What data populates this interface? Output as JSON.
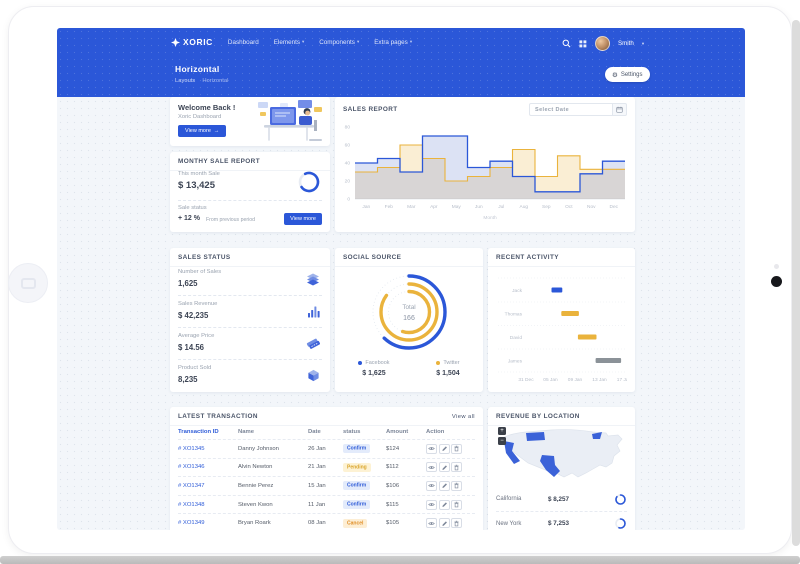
{
  "navbar": {
    "logo": "XORIC",
    "items": [
      {
        "label": "Dashboard",
        "caret": false
      },
      {
        "label": "Elements",
        "caret": true
      },
      {
        "label": "Components",
        "caret": true
      },
      {
        "label": "Extra pages",
        "caret": true
      }
    ],
    "user": "Smith"
  },
  "page_header": {
    "title": "Horizontal",
    "breadcrumb": [
      "Layouts",
      "Horizontal"
    ],
    "settings_label": "Settings"
  },
  "welcome": {
    "title": "Welcome Back !",
    "subtitle": "Xoric Dashboard",
    "button": "View more",
    "button_arrow": "→"
  },
  "monthly": {
    "title": "MONTHY SALE REPORT",
    "this_month_label": "This month Sale",
    "value": "$ 13,425",
    "progress_pct": 72,
    "status_label": "Sale status",
    "change": "+ 12 %",
    "change_note": "From previous period",
    "button": "View more"
  },
  "sales_report": {
    "title": "SALES REPORT",
    "date_placeholder": "Select Date"
  },
  "sales_status": {
    "title": "SALES STATUS",
    "items": [
      {
        "label": "Number of Sales",
        "value": "1,625",
        "icon": "layers-icon"
      },
      {
        "label": "Sales Revenue",
        "value": "$ 42,235",
        "icon": "bar-chart-icon"
      },
      {
        "label": "Average Price",
        "value": "$ 14.56",
        "icon": "money-icon"
      },
      {
        "label": "Product Sold",
        "value": "8,235",
        "icon": "box-icon"
      }
    ]
  },
  "social": {
    "title": "SOCIAL SOURCE",
    "total_label": "Total",
    "total": "166",
    "legend": [
      {
        "name": "Facebook",
        "value": "$ 1,625",
        "color": "#2b57d8"
      },
      {
        "name": "Twitter",
        "value": "$ 1,504",
        "color": "#eab33c"
      }
    ]
  },
  "recent": {
    "title": "RECENT ACTIVITY"
  },
  "transactions": {
    "title": "LATEST TRANSACTION",
    "view_all": "View all",
    "headers": [
      "Transaction ID",
      "Name",
      "Date",
      "status",
      "Amount",
      "Action"
    ],
    "rows": [
      {
        "id": "# XO1345",
        "name": "Danny Johnson",
        "date": "26 Jan",
        "status": "Confirm",
        "amount": "$124"
      },
      {
        "id": "# XO1346",
        "name": "Alvin Newton",
        "date": "21 Jan",
        "status": "Pending",
        "amount": "$112"
      },
      {
        "id": "# XO1347",
        "name": "Bennie Perez",
        "date": "15 Jan",
        "status": "Confirm",
        "amount": "$106"
      },
      {
        "id": "# XO1348",
        "name": "Steven Kwon",
        "date": "11 Jan",
        "status": "Confirm",
        "amount": "$115"
      },
      {
        "id": "# XO1349",
        "name": "Bryan Roark",
        "date": "08 Jan",
        "status": "Cancel",
        "amount": "$105"
      }
    ]
  },
  "revenue": {
    "title": "REVENUE BY LOCATION",
    "zoom_in": "+",
    "zoom_out": "−",
    "rows": [
      {
        "name": "California",
        "amount": "$ 8,257",
        "pct": 85
      },
      {
        "name": "New York",
        "amount": "$ 7,253",
        "pct": 55
      }
    ]
  },
  "colors": {
    "primary": "#2b57d8",
    "yellow": "#eab33c",
    "gray": "#8b9298"
  },
  "chart_data": [
    {
      "type": "line",
      "subtype": "stepline-area",
      "title": "SALES REPORT",
      "xlabel": "Month",
      "categories": [
        "Jan",
        "Feb",
        "Mar",
        "Apr",
        "May",
        "Jun",
        "Jul",
        "Aug",
        "Sep",
        "Oct",
        "Nov",
        "Dec"
      ],
      "series": [
        {
          "name": "sales-blue",
          "color": "#2b57d8",
          "values": [
            40,
            45,
            30,
            70,
            70,
            35,
            42,
            25,
            8,
            8,
            28,
            42
          ]
        },
        {
          "name": "sales-yellow",
          "color": "#eab33c",
          "values": [
            30,
            35,
            60,
            45,
            20,
            25,
            35,
            55,
            25,
            48,
            33,
            33
          ]
        }
      ],
      "ylim": [
        0,
        80
      ],
      "yticks": [
        0,
        20,
        40,
        60,
        80
      ],
      "grid": false,
      "legend_position": "none"
    },
    {
      "type": "pie",
      "subtype": "radialBar",
      "title": "SOCIAL SOURCE",
      "total_label": "Total",
      "total": 166,
      "rings": [
        {
          "name": "Facebook",
          "color": "#2b57d8",
          "pct": 62,
          "amount": "$ 1,625"
        },
        {
          "name": "Twitter",
          "color": "#eab33c",
          "pct": 85,
          "amount": "$ 1,504"
        },
        {
          "name": "Twitter-inner",
          "color": "#eab33c",
          "pct": 55
        }
      ]
    },
    {
      "type": "bar",
      "subtype": "rangeBar-gantt",
      "title": "RECENT ACTIVITY",
      "x_ticks": [
        "31 Dec",
        "05 Jan",
        "09 Jan",
        "13 Jan",
        "17 Jan"
      ],
      "rows": [
        {
          "name": "Jack",
          "color": "#2b57d8",
          "start_pct": 26,
          "end_pct": 37
        },
        {
          "name": "Thomas",
          "color": "#eab33c",
          "start_pct": 36,
          "end_pct": 54
        },
        {
          "name": "David",
          "color": "#eab33c",
          "start_pct": 53,
          "end_pct": 72
        },
        {
          "name": "James",
          "color": "#8b9298",
          "start_pct": 71,
          "end_pct": 97
        }
      ]
    },
    {
      "type": "table",
      "subtype": "map-revenue",
      "title": "REVENUE BY LOCATION",
      "highlighted_states": [
        "California",
        "Montana",
        "Texas",
        "New York"
      ],
      "locations": [
        {
          "name": "California",
          "amount": "$ 8,257",
          "pct": 85
        },
        {
          "name": "New York",
          "amount": "$ 7,253",
          "pct": 55
        }
      ]
    }
  ]
}
